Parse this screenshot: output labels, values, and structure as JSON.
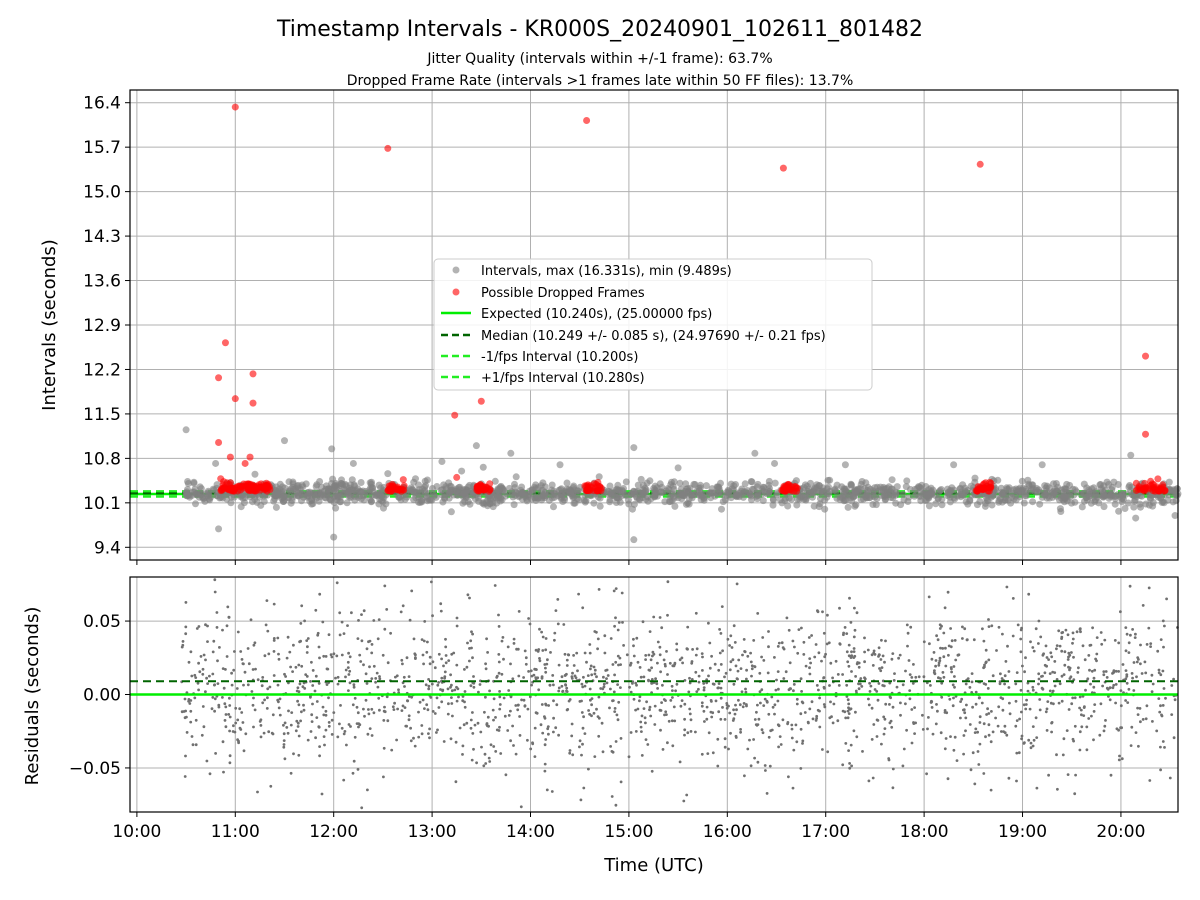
{
  "figure": {
    "title": "Timestamp Intervals - KR000S_20240901_102611_801482",
    "subtitle_1": "Jitter Quality (intervals within +/-1 frame): 63.7%",
    "subtitle_2": "Dropped Frame Rate (intervals >1 frames late within 50 FF files): 13.7%"
  },
  "colors": {
    "intervals": "#808080",
    "dropped": "#ff0000",
    "expected": "#00ee00",
    "median": "#006400",
    "fps_bounds": "#22ee22",
    "grid": "#b0b0b0"
  },
  "chart_data": [
    {
      "type": "scatter",
      "panel": "intervals",
      "ylabel": "Intervals (seconds)",
      "xlim_hours": [
        9.93,
        20.58
      ],
      "ylim": [
        9.2,
        16.6
      ],
      "yticks": [
        9.4,
        10.1,
        10.8,
        11.5,
        12.2,
        12.9,
        13.6,
        14.3,
        15.0,
        15.7,
        16.4
      ],
      "ytick_labels": [
        "9.4",
        "10.1",
        "10.8",
        "11.5",
        "12.2",
        "12.9",
        "13.6",
        "14.3",
        "15.0",
        "15.7",
        "16.4"
      ],
      "grid": true,
      "legend_position": "center",
      "legend": [
        {
          "label": "Intervals, max (16.331s), min (9.489s)",
          "marker": "dot",
          "color": "#808080"
        },
        {
          "label": "Possible Dropped Frames",
          "marker": "dot",
          "color": "#ff0000"
        },
        {
          "label": "Expected (10.240s), (25.00000 fps)",
          "marker": "line",
          "color": "#00ee00"
        },
        {
          "label": "Median (10.249 +/- 0.085 s), (24.97690 +/- 0.21 fps)",
          "marker": "dash",
          "color": "#006400"
        },
        {
          "label": "-1/fps Interval (10.200s)",
          "marker": "dash",
          "color": "#22ee22"
        },
        {
          "label": "+1/fps Interval (10.280s)",
          "marker": "dash",
          "color": "#22ee22"
        }
      ],
      "reference_lines": {
        "expected": 10.24,
        "median": 10.249,
        "minus_fps": 10.2,
        "plus_fps": 10.28
      },
      "interval_stats": {
        "start_hour": 10.5,
        "end_hour": 20.58,
        "count": 1500,
        "center": 10.25,
        "spread": 0.09
      },
      "interval_outliers": [
        [
          10.5,
          11.25
        ],
        [
          10.8,
          10.72
        ],
        [
          10.83,
          9.69
        ],
        [
          11.2,
          10.55
        ],
        [
          11.5,
          11.08
        ],
        [
          11.98,
          10.95
        ],
        [
          12.0,
          9.56
        ],
        [
          12.2,
          10.72
        ],
        [
          12.55,
          10.56
        ],
        [
          13.1,
          10.75
        ],
        [
          13.3,
          10.6
        ],
        [
          13.45,
          11.0
        ],
        [
          13.8,
          10.88
        ],
        [
          14.3,
          10.7
        ],
        [
          15.05,
          10.97
        ],
        [
          15.05,
          9.52
        ],
        [
          15.5,
          10.65
        ],
        [
          16.28,
          10.88
        ],
        [
          17.2,
          10.7
        ],
        [
          18.3,
          10.7
        ],
        [
          19.2,
          10.7
        ],
        [
          20.1,
          10.85
        ],
        [
          20.15,
          9.86
        ],
        [
          20.55,
          9.9
        ],
        [
          16.48,
          10.72
        ],
        [
          13.52,
          10.66
        ]
      ],
      "dropped_clusters": [
        {
          "start": 10.85,
          "end": 11.38,
          "count": 90
        },
        {
          "start": 12.55,
          "end": 12.72,
          "count": 30
        },
        {
          "start": 13.45,
          "end": 13.6,
          "count": 28
        },
        {
          "start": 14.55,
          "end": 14.72,
          "count": 28
        },
        {
          "start": 16.55,
          "end": 16.72,
          "count": 28
        },
        {
          "start": 18.52,
          "end": 18.7,
          "count": 28
        },
        {
          "start": 20.15,
          "end": 20.45,
          "count": 40
        }
      ],
      "dropped_outliers": [
        [
          11.0,
          16.331
        ],
        [
          12.55,
          15.68
        ],
        [
          14.57,
          16.12
        ],
        [
          16.57,
          15.37
        ],
        [
          18.57,
          15.43
        ],
        [
          10.9,
          12.62
        ],
        [
          10.83,
          12.07
        ],
        [
          11.18,
          12.13
        ],
        [
          11.0,
          11.74
        ],
        [
          11.18,
          11.67
        ],
        [
          10.83,
          11.05
        ],
        [
          13.23,
          11.48
        ],
        [
          13.5,
          11.7
        ],
        [
          20.25,
          12.41
        ],
        [
          20.25,
          11.18
        ],
        [
          13.25,
          10.5
        ],
        [
          10.95,
          10.82
        ],
        [
          11.1,
          10.72
        ],
        [
          11.15,
          10.82
        ]
      ]
    },
    {
      "type": "scatter",
      "panel": "residuals",
      "ylabel": "Residuals (seconds)",
      "xlabel": "Time (UTC)",
      "xlim_hours": [
        9.93,
        20.58
      ],
      "ylim": [
        -0.08,
        0.08
      ],
      "yticks": [
        -0.05,
        0.0,
        0.05
      ],
      "ytick_labels": [
        "−0.05",
        "0.00",
        "0.05"
      ],
      "xticks": [
        10,
        11,
        12,
        13,
        14,
        15,
        16,
        17,
        18,
        19,
        20
      ],
      "xtick_labels": [
        "10:00",
        "11:00",
        "12:00",
        "13:00",
        "14:00",
        "15:00",
        "16:00",
        "17:00",
        "18:00",
        "19:00",
        "20:00"
      ],
      "grid": true,
      "reference_lines": {
        "zero": 0.0,
        "median_offset": 0.009
      },
      "residual_stats": {
        "start_hour": 10.45,
        "end_hour": 20.58,
        "count": 2000,
        "spread": 0.028
      }
    }
  ]
}
